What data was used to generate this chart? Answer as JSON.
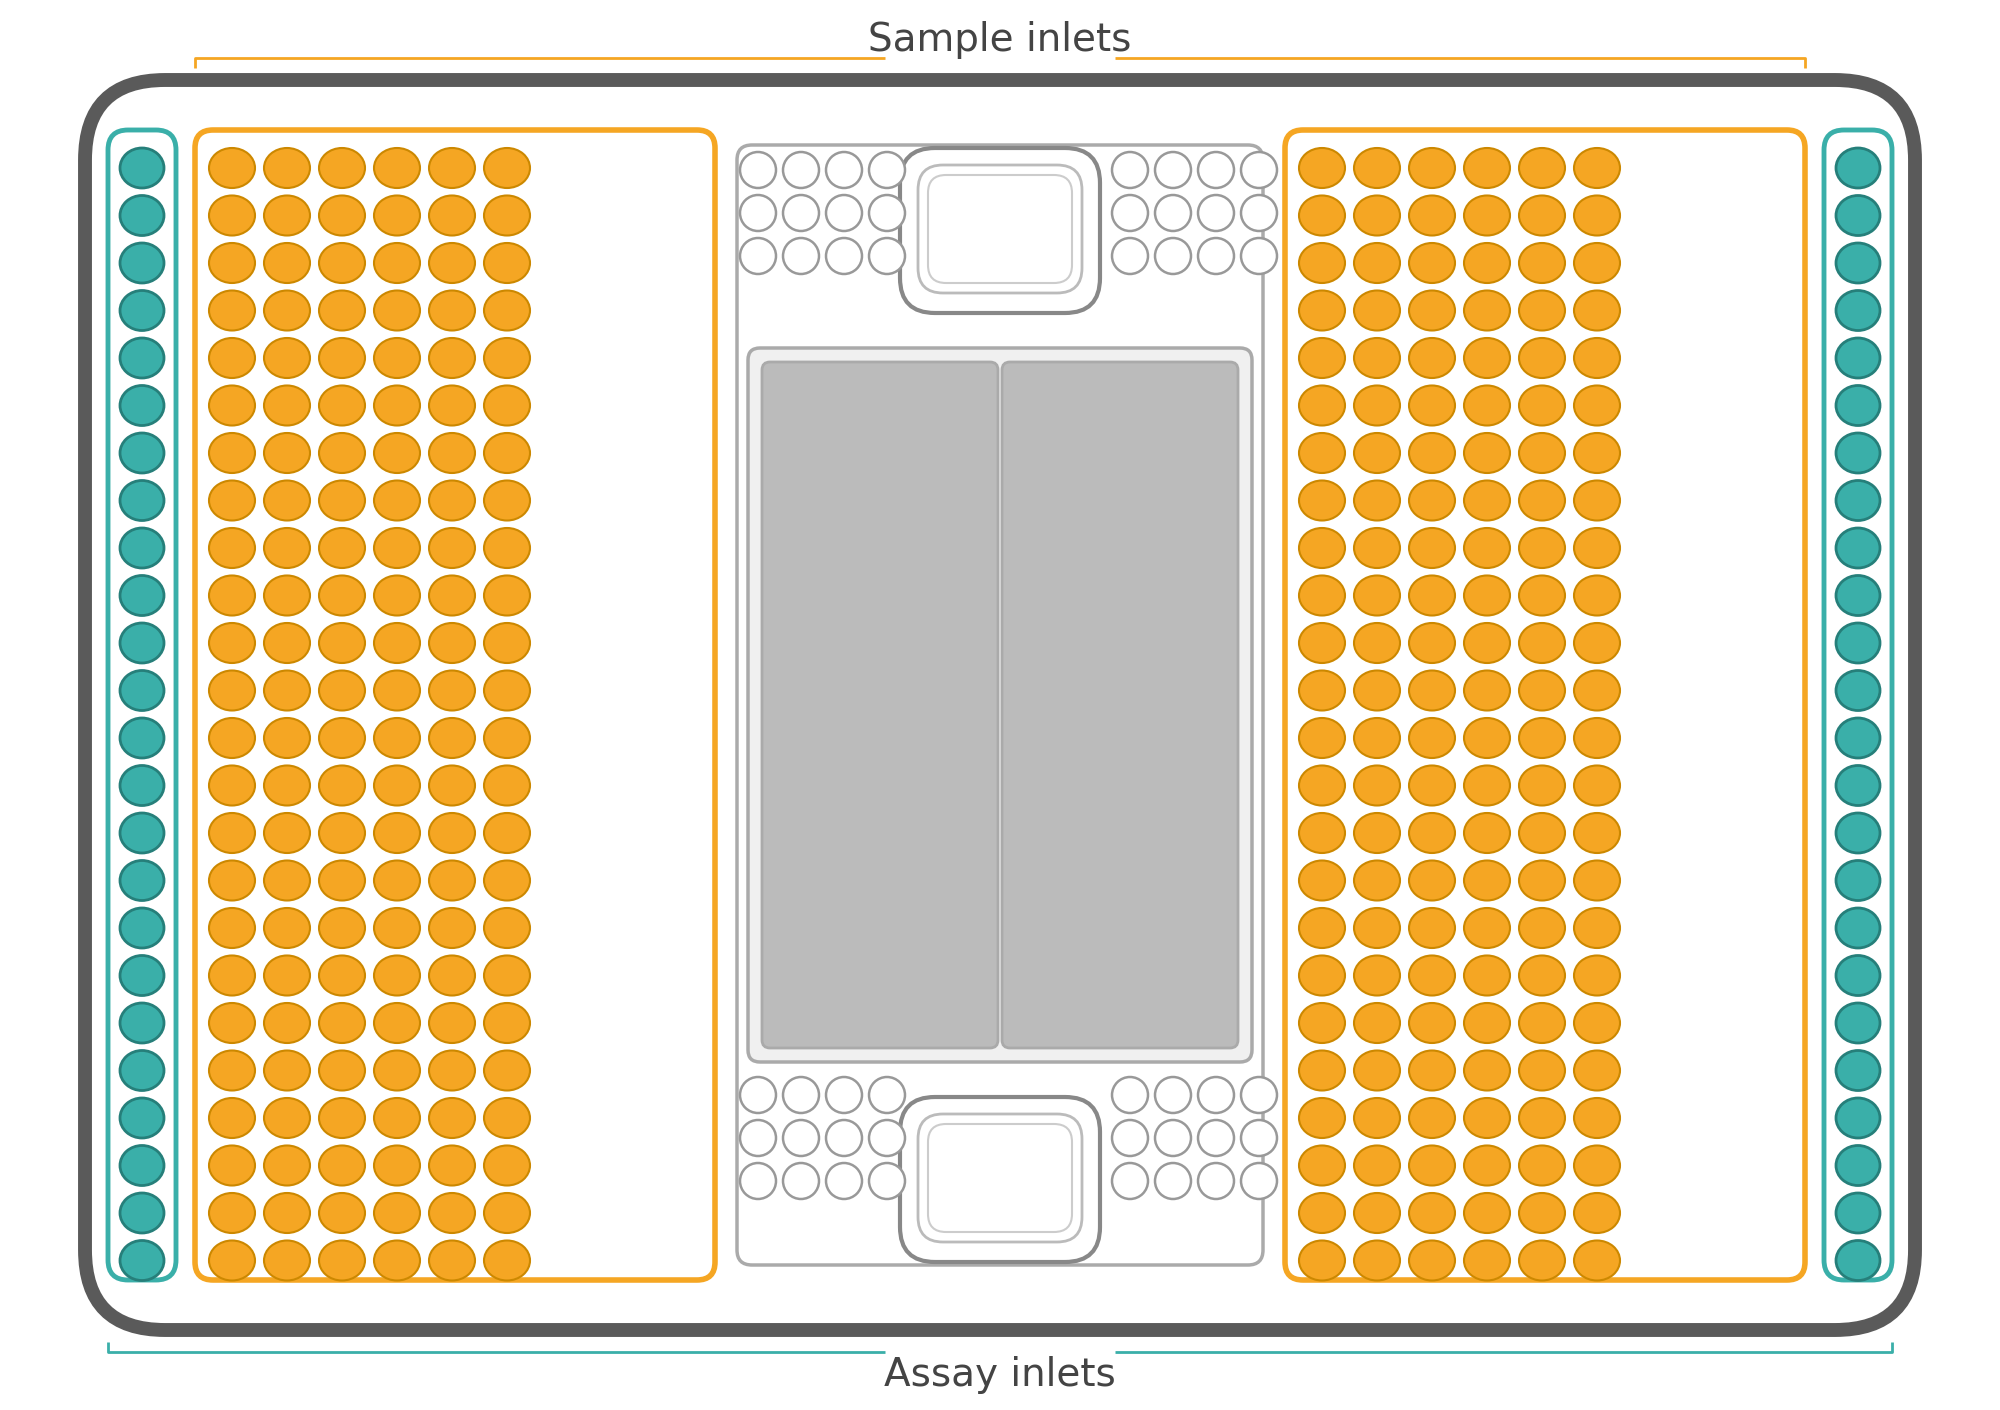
{
  "fig_width": 20.0,
  "fig_height": 14.1,
  "bg_color": "#ffffff",
  "chip_color": "#5a5a5a",
  "orange_color": "#F5A623",
  "orange_border": "#CC8800",
  "teal_color": "#3AAFA9",
  "teal_border": "#267F7A",
  "white_circle_color": "#ffffff",
  "gray_border": "#999999",
  "gray_fill": "#BBBBBB",
  "label_color": "#444444",
  "title_sample": "Sample inlets",
  "title_assay": "Assay inlets",
  "font_size": 28,
  "orange_rows": 24,
  "orange_cols": 6,
  "teal_rows": 24
}
